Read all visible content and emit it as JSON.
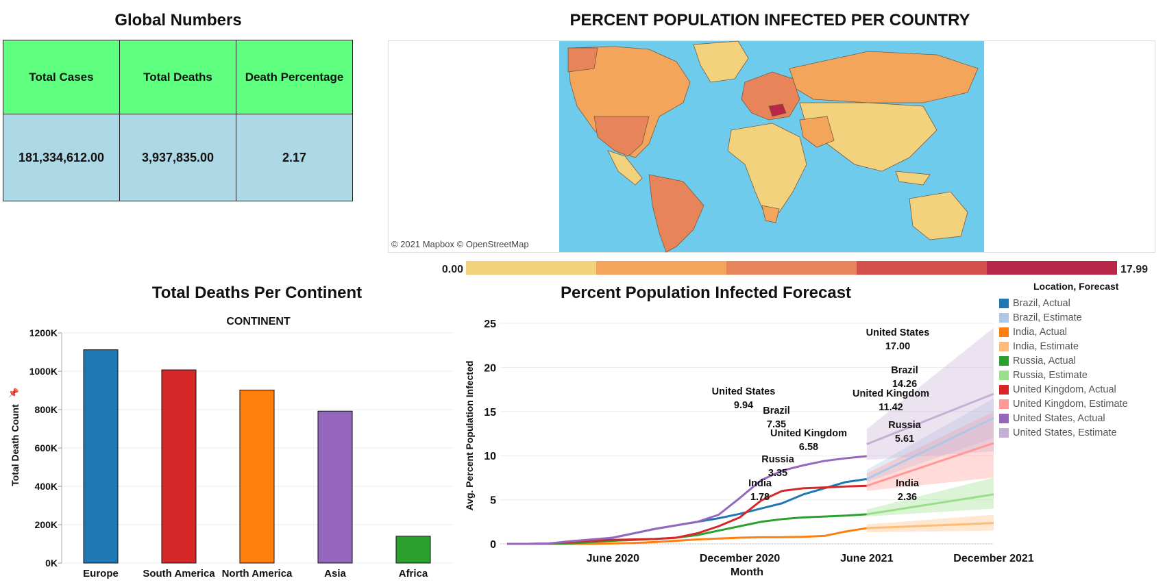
{
  "global_numbers": {
    "title": "Global Numbers",
    "headers": [
      "Total Cases",
      "Total Deaths",
      "Death Percentage"
    ],
    "values": [
      "181,334,612.00",
      "3,937,835.00",
      "2.17"
    ]
  },
  "map": {
    "title": "PERCENT POPULATION INFECTED PER COUNTRY",
    "credit": "© 2021 Mapbox © OpenStreetMap",
    "colors": {
      "ocean": "#6fcbec",
      "land_low": "#f2d27c",
      "land_mid": "#f2a55b",
      "land_high": "#e8845a",
      "land_very_high": "#d4504c"
    }
  },
  "color_scale": {
    "min_label": "0.00",
    "max_label": "17.99",
    "colors": [
      "#f2d27c",
      "#f2a55b",
      "#e8845a",
      "#d4504c",
      "#b82648"
    ]
  },
  "deaths_panel": {
    "title": "Total Deaths Per Continent",
    "column_header": "CONTINENT",
    "pin_icon": "pin-icon"
  },
  "forecast_panel": {
    "title": "Percent Population Infected Forecast"
  },
  "legend": {
    "title": "Location, Forecast",
    "items": [
      {
        "label": "Brazil, Actual",
        "color": "#1f77b4"
      },
      {
        "label": "Brazil, Estimate",
        "color": "#aec7e8"
      },
      {
        "label": "India, Actual",
        "color": "#ff7f0e"
      },
      {
        "label": "India, Estimate",
        "color": "#ffbb78"
      },
      {
        "label": "Russia, Actual",
        "color": "#2ca02c"
      },
      {
        "label": "Russia, Estimate",
        "color": "#98df8a"
      },
      {
        "label": "United Kingdom, Actual",
        "color": "#d62728"
      },
      {
        "label": "United Kingdom, Estimate",
        "color": "#ff9896"
      },
      {
        "label": "United States, Actual",
        "color": "#9467bd"
      },
      {
        "label": "United States, Estimate",
        "color": "#c5b0d5"
      }
    ]
  },
  "chart_data": [
    {
      "type": "bar",
      "title": "Total Deaths Per Continent",
      "xlabel": "CONTINENT",
      "ylabel": "Total Death Count",
      "categories": [
        "Europe",
        "South America",
        "North America",
        "Asia",
        "Africa"
      ],
      "values": [
        1112000,
        1007000,
        902000,
        792000,
        140000
      ],
      "colors": [
        "#1f77b4",
        "#d62728",
        "#ff7f0e",
        "#9467bd",
        "#2ca02c"
      ],
      "ylim": [
        0,
        1200000
      ],
      "yticks": [
        0,
        200000,
        400000,
        600000,
        800000,
        1000000,
        1200000
      ],
      "ytick_labels": [
        "0K",
        "200K",
        "400K",
        "600K",
        "800K",
        "1000K",
        "1200K"
      ],
      "grid": true
    },
    {
      "type": "line",
      "title": "Percent Population Infected Forecast",
      "xlabel": "Month",
      "ylabel": "Avg. Percent Population Infected",
      "x_ticks": [
        "2020-06",
        "2020-12",
        "2021-06",
        "2021-12"
      ],
      "x_tick_labels": [
        "June 2020",
        "December 2020",
        "June 2021",
        "December 2021"
      ],
      "x_range": [
        "2020-01",
        "2021-12"
      ],
      "ylim": [
        0,
        25
      ],
      "yticks": [
        0,
        5,
        10,
        15,
        20,
        25
      ],
      "grid": true,
      "series": [
        {
          "name": "Brazil, Actual",
          "color": "#1f77b4",
          "x": [
            "2020-01",
            "2020-02",
            "2020-03",
            "2020-04",
            "2020-05",
            "2020-06",
            "2020-07",
            "2020-08",
            "2020-09",
            "2020-10",
            "2020-11",
            "2020-12",
            "2021-01",
            "2021-02",
            "2021-03",
            "2021-04",
            "2021-05",
            "2021-06"
          ],
          "y": [
            0,
            0,
            0,
            0.05,
            0.3,
            0.7,
            1.2,
            1.7,
            2.1,
            2.5,
            2.9,
            3.4,
            4.0,
            4.6,
            5.6,
            6.3,
            7.0,
            7.35
          ]
        },
        {
          "name": "Brazil, Estimate",
          "color": "#aec7e8",
          "x": [
            "2021-06",
            "2021-12"
          ],
          "y": [
            7.35,
            14.26
          ],
          "lower": [
            7.0,
            12.0
          ],
          "upper": [
            8.4,
            16.5
          ]
        },
        {
          "name": "India, Actual",
          "color": "#ff7f0e",
          "x": [
            "2020-01",
            "2020-02",
            "2020-03",
            "2020-04",
            "2020-05",
            "2020-06",
            "2020-07",
            "2020-08",
            "2020-09",
            "2020-10",
            "2020-11",
            "2020-12",
            "2021-01",
            "2021-02",
            "2021-03",
            "2021-04",
            "2021-05",
            "2021-06"
          ],
          "y": [
            0,
            0,
            0,
            0,
            0,
            0.05,
            0.1,
            0.2,
            0.35,
            0.5,
            0.6,
            0.7,
            0.75,
            0.75,
            0.8,
            0.9,
            1.4,
            1.78
          ]
        },
        {
          "name": "India, Estimate",
          "color": "#ffbb78",
          "x": [
            "2021-06",
            "2021-12"
          ],
          "y": [
            1.78,
            2.36
          ],
          "lower": [
            1.3,
            1.5
          ],
          "upper": [
            2.2,
            3.3
          ]
        },
        {
          "name": "Russia, Actual",
          "color": "#2ca02c",
          "x": [
            "2020-01",
            "2020-02",
            "2020-03",
            "2020-04",
            "2020-05",
            "2020-06",
            "2020-07",
            "2020-08",
            "2020-09",
            "2020-10",
            "2020-11",
            "2020-12",
            "2021-01",
            "2021-02",
            "2021-03",
            "2021-04",
            "2021-05",
            "2021-06"
          ],
          "y": [
            0,
            0,
            0,
            0.05,
            0.2,
            0.35,
            0.45,
            0.55,
            0.7,
            1.0,
            1.5,
            2.0,
            2.5,
            2.8,
            3.0,
            3.1,
            3.2,
            3.35
          ]
        },
        {
          "name": "Russia, Estimate",
          "color": "#98df8a",
          "x": [
            "2021-06",
            "2021-12"
          ],
          "y": [
            3.35,
            5.61
          ],
          "lower": [
            3.1,
            4.0
          ],
          "upper": [
            3.9,
            7.5
          ]
        },
        {
          "name": "United Kingdom, Actual",
          "color": "#d62728",
          "x": [
            "2020-01",
            "2020-02",
            "2020-03",
            "2020-04",
            "2020-05",
            "2020-06",
            "2020-07",
            "2020-08",
            "2020-09",
            "2020-10",
            "2020-11",
            "2020-12",
            "2021-01",
            "2021-02",
            "2021-03",
            "2021-04",
            "2021-05",
            "2021-06"
          ],
          "y": [
            0,
            0,
            0.05,
            0.2,
            0.35,
            0.45,
            0.5,
            0.55,
            0.7,
            1.2,
            2.0,
            3.0,
            4.9,
            6.0,
            6.3,
            6.4,
            6.5,
            6.58
          ]
        },
        {
          "name": "United Kingdom, Estimate",
          "color": "#ff9896",
          "x": [
            "2021-06",
            "2021-12"
          ],
          "y": [
            6.58,
            11.42
          ],
          "lower": [
            6.0,
            7.5
          ],
          "upper": [
            8.0,
            15.0
          ]
        },
        {
          "name": "United States, Actual",
          "color": "#9467bd",
          "x": [
            "2020-01",
            "2020-02",
            "2020-03",
            "2020-04",
            "2020-05",
            "2020-06",
            "2020-07",
            "2020-08",
            "2020-09",
            "2020-10",
            "2020-11",
            "2020-12",
            "2021-01",
            "2021-02",
            "2021-03",
            "2021-04",
            "2021-05",
            "2021-06"
          ],
          "y": [
            0,
            0,
            0.05,
            0.3,
            0.5,
            0.7,
            1.2,
            1.7,
            2.1,
            2.5,
            3.3,
            5.2,
            7.2,
            8.3,
            8.9,
            9.4,
            9.7,
            9.94
          ]
        },
        {
          "name": "United States, Estimate",
          "color": "#c5b0d5",
          "x": [
            "2021-06",
            "2021-12"
          ],
          "y": [
            11.3,
            17.0
          ],
          "lower": [
            9.5,
            10.5
          ],
          "upper": [
            13.0,
            24.5
          ]
        }
      ],
      "annotations": [
        {
          "name": "United States",
          "value": "9.94"
        },
        {
          "name": "Brazil",
          "value": "7.35"
        },
        {
          "name": "United Kingdom",
          "value": "6.58"
        },
        {
          "name": "Russia",
          "value": "3.35"
        },
        {
          "name": "India",
          "value": "1.78"
        },
        {
          "name": "United States",
          "value": "17.00"
        },
        {
          "name": "Brazil",
          "value": "14.26"
        },
        {
          "name": "United Kingdom",
          "value": "11.42"
        },
        {
          "name": "Russia",
          "value": "5.61"
        },
        {
          "name": "India",
          "value": "2.36"
        }
      ]
    }
  ]
}
